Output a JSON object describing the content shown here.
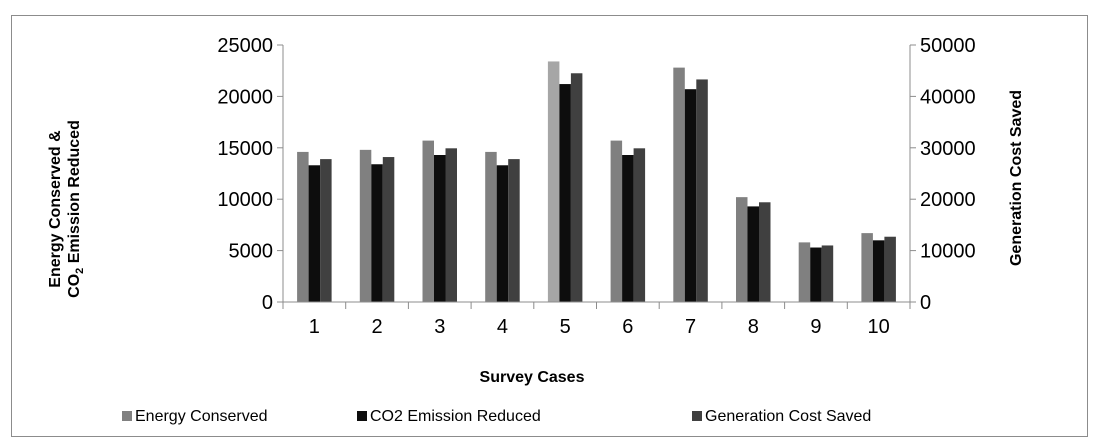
{
  "chart_data": {
    "type": "bar",
    "categories": [
      "1",
      "2",
      "3",
      "4",
      "5",
      "6",
      "7",
      "8",
      "9",
      "10"
    ],
    "series": [
      {
        "name": "Energy Conserved",
        "axis": "left",
        "color": "#808080",
        "values": [
          14600,
          14800,
          15700,
          14600,
          23400,
          15700,
          22800,
          10200,
          5800,
          6700
        ],
        "highlight": {
          "index": 4,
          "color": "#a6a6a6"
        }
      },
      {
        "name": "CO2 Emission Reduced",
        "axis": "left",
        "color": "#0d0d0d",
        "values": [
          13300,
          13400,
          14300,
          13300,
          21200,
          14300,
          20700,
          9300,
          5300,
          6000
        ]
      },
      {
        "name": "Generation Cost Saved",
        "axis": "right",
        "color": "#404040",
        "values": [
          27800,
          28200,
          29900,
          27800,
          44500,
          29900,
          43300,
          19400,
          11000,
          12700
        ]
      }
    ],
    "legend_order": [
      "Energy Conserved",
      "CO2 Emission Reduced",
      "Generation Cost Saved"
    ],
    "legend_placement": "bottom",
    "xlabel": "Survey Cases",
    "ylabel_left_line1": "Energy Conserved &",
    "ylabel_left_line2_main": "CO",
    "ylabel_left_line2_sub": "2",
    "ylabel_left_line2_rest": " Emission Reduced",
    "ylabel_right": "Generation Cost Saved",
    "ylim_left": [
      0,
      25000
    ],
    "ylim_right": [
      0,
      50000
    ],
    "yticks_left": [
      "0",
      "5000",
      "10000",
      "15000",
      "20000",
      "25000"
    ],
    "yticks_right": [
      "0",
      "10000",
      "20000",
      "30000",
      "40000",
      "50000"
    ],
    "grid": false
  }
}
